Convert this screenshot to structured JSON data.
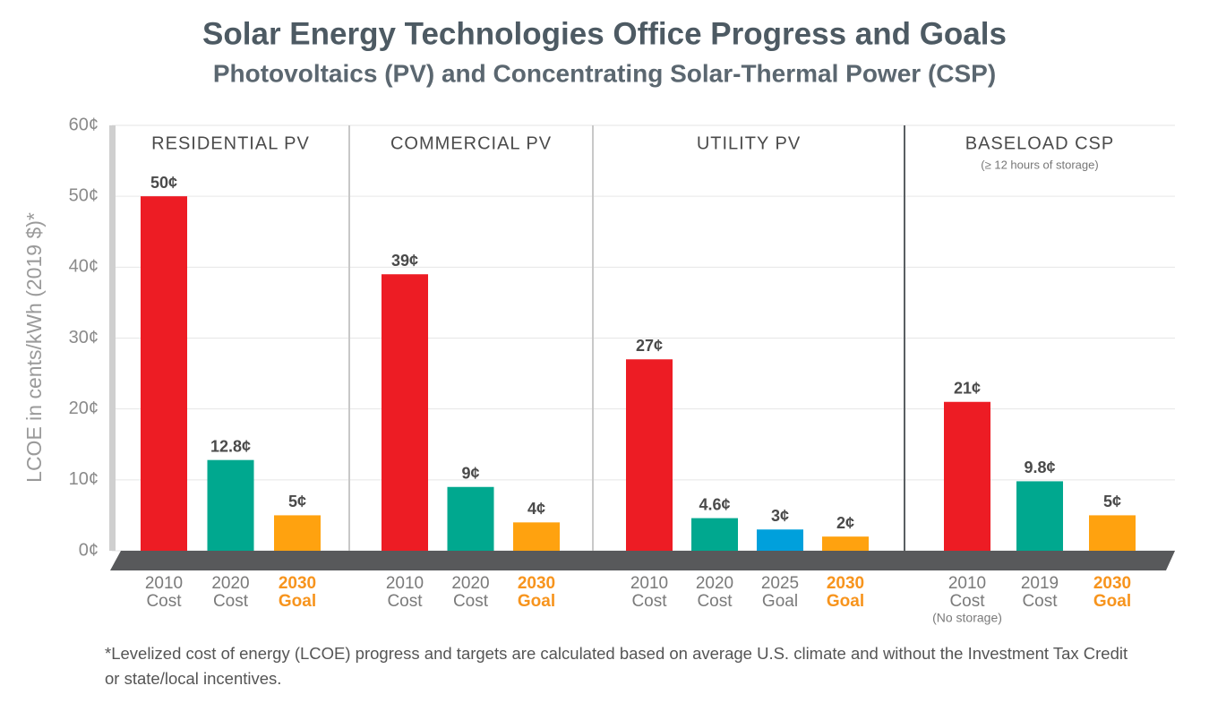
{
  "chart_data": {
    "type": "bar",
    "title": "Solar Energy Technologies Office Progress and Goals",
    "subtitle": "Photovoltaics (PV) and Concentrating Solar-Thermal Power (CSP)",
    "y_label": "LCOE in cents/kWh (2019 $)*",
    "ylim": [
      0,
      60
    ],
    "yticks": [
      {
        "value": 0,
        "label": "0¢"
      },
      {
        "value": 10,
        "label": "10¢"
      },
      {
        "value": 20,
        "label": "20¢"
      },
      {
        "value": 30,
        "label": "30¢"
      },
      {
        "value": 40,
        "label": "40¢"
      },
      {
        "value": 50,
        "label": "50¢"
      },
      {
        "value": 60,
        "label": "60¢"
      }
    ],
    "grid": true,
    "panels": [
      {
        "title": "RESIDENTIAL PV",
        "categories": [
          [
            "2010",
            "Cost"
          ],
          [
            "2020",
            "Cost"
          ],
          [
            "2030",
            "Goal"
          ]
        ],
        "values": [
          50,
          12.8,
          5
        ],
        "value_labels": [
          "50¢",
          "12.8¢",
          "5¢"
        ],
        "colors": [
          "#ed1c24",
          "#00a88f",
          "#ffa20f"
        ],
        "label_colors": [
          "#7a7a7a",
          "#7a7a7a",
          "#f7941d"
        ]
      },
      {
        "title": "COMMERCIAL PV",
        "categories": [
          [
            "2010",
            "Cost"
          ],
          [
            "2020",
            "Cost"
          ],
          [
            "2030",
            "Goal"
          ]
        ],
        "values": [
          39,
          9,
          4
        ],
        "value_labels": [
          "39¢",
          "9¢",
          "4¢"
        ],
        "colors": [
          "#ed1c24",
          "#00a88f",
          "#ffa20f"
        ],
        "label_colors": [
          "#7a7a7a",
          "#7a7a7a",
          "#f7941d"
        ]
      },
      {
        "title": "UTILITY PV",
        "categories": [
          [
            "2010",
            "Cost"
          ],
          [
            "2020",
            "Cost"
          ],
          [
            "2025",
            "Goal"
          ],
          [
            "2030",
            "Goal"
          ]
        ],
        "values": [
          27,
          4.6,
          3,
          2
        ],
        "value_labels": [
          "27¢",
          "4.6¢",
          "3¢",
          "2¢"
        ],
        "colors": [
          "#ed1c24",
          "#00a88f",
          "#00a0dc",
          "#ffa20f"
        ],
        "label_colors": [
          "#7a7a7a",
          "#7a7a7a",
          "#7a7a7a",
          "#f7941d"
        ]
      },
      {
        "title": "BASELOAD CSP",
        "subtitle": "(≥ 12 hours of storage)",
        "categories": [
          [
            "2010",
            "Cost",
            "(No storage)"
          ],
          [
            "2019",
            "Cost"
          ],
          [
            "2030",
            "Goal"
          ]
        ],
        "values": [
          21,
          9.8,
          5
        ],
        "value_labels": [
          "21¢",
          "9.8¢",
          "5¢"
        ],
        "colors": [
          "#ed1c24",
          "#00a88f",
          "#ffa20f"
        ],
        "label_colors": [
          "#7a7a7a",
          "#7a7a7a",
          "#f7941d"
        ]
      }
    ],
    "footnote": "*Levelized cost of energy (LCOE) progress and targets are calculated based on average U.S. climate and without the Investment Tax Credit or state/local incentives."
  }
}
